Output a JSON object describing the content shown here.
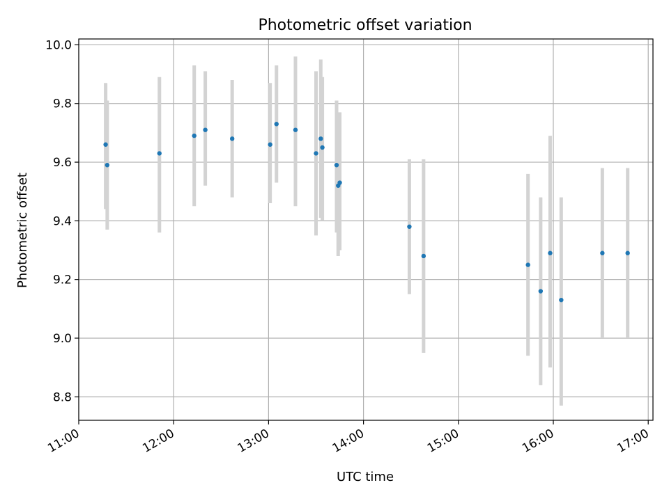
{
  "chart_data": {
    "type": "scatter",
    "title": "Photometric offset variation",
    "xlabel": "UTC time",
    "ylabel": "Photometric offset",
    "x_ticks": [
      "11:00",
      "12:00",
      "13:00",
      "14:00",
      "15:00",
      "16:00",
      "17:00"
    ],
    "y_ticks": [
      "8.8",
      "9.0",
      "9.2",
      "9.4",
      "9.6",
      "9.8",
      "10.0"
    ],
    "xlim": [
      "11:00",
      "17:03"
    ],
    "ylim": [
      8.72,
      10.02
    ],
    "grid": true,
    "legend": "none",
    "colors": {
      "point": "#1f77b4",
      "errorbar": "#d3d3d3",
      "grid": "#b0b0b0"
    },
    "points": [
      {
        "x": "11:17",
        "y": 9.66,
        "low": 9.44,
        "high": 9.87
      },
      {
        "x": "11:18",
        "y": 9.59,
        "low": 9.37,
        "high": 9.81
      },
      {
        "x": "11:51",
        "y": 9.63,
        "low": 9.36,
        "high": 9.89
      },
      {
        "x": "12:13",
        "y": 9.69,
        "low": 9.45,
        "high": 9.93
      },
      {
        "x": "12:20",
        "y": 9.71,
        "low": 9.52,
        "high": 9.91
      },
      {
        "x": "12:37",
        "y": 9.68,
        "low": 9.48,
        "high": 9.88
      },
      {
        "x": "13:01",
        "y": 9.66,
        "low": 9.46,
        "high": 9.87
      },
      {
        "x": "13:05",
        "y": 9.73,
        "low": 9.53,
        "high": 9.93
      },
      {
        "x": "13:17",
        "y": 9.71,
        "low": 9.45,
        "high": 9.96
      },
      {
        "x": "13:30",
        "y": 9.63,
        "low": 9.35,
        "high": 9.91
      },
      {
        "x": "13:33",
        "y": 9.68,
        "low": 9.41,
        "high": 9.95
      },
      {
        "x": "13:34",
        "y": 9.65,
        "low": 9.4,
        "high": 9.89
      },
      {
        "x": "13:43",
        "y": 9.59,
        "low": 9.36,
        "high": 9.81
      },
      {
        "x": "13:44",
        "y": 9.52,
        "low": 9.28,
        "high": 9.76
      },
      {
        "x": "13:45",
        "y": 9.53,
        "low": 9.3,
        "high": 9.77
      },
      {
        "x": "14:29",
        "y": 9.38,
        "low": 9.15,
        "high": 9.61
      },
      {
        "x": "14:38",
        "y": 9.28,
        "low": 8.95,
        "high": 9.61
      },
      {
        "x": "15:44",
        "y": 9.25,
        "low": 8.94,
        "high": 9.56
      },
      {
        "x": "15:52",
        "y": 9.16,
        "low": 8.84,
        "high": 9.48
      },
      {
        "x": "15:58",
        "y": 9.29,
        "low": 8.9,
        "high": 9.69
      },
      {
        "x": "16:05",
        "y": 9.13,
        "low": 8.77,
        "high": 9.48
      },
      {
        "x": "16:31",
        "y": 9.29,
        "low": 9.0,
        "high": 9.58
      },
      {
        "x": "16:47",
        "y": 9.29,
        "low": 9.0,
        "high": 9.58
      }
    ]
  }
}
